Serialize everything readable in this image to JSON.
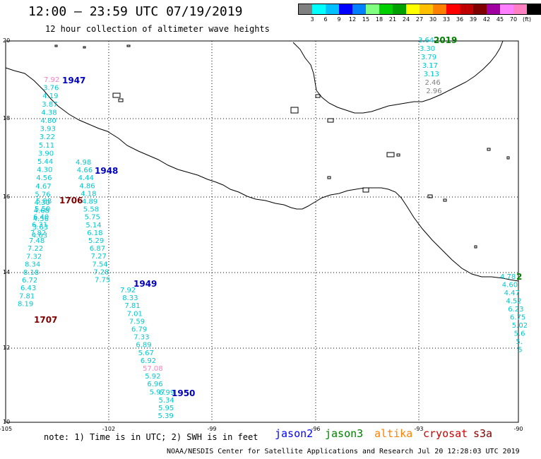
{
  "title": "12:00 – 23:59 UTC 07/19/2019",
  "subtitle": "12 hour collection of altimeter wave heights",
  "color_scale": {
    "colors": [
      "#808080",
      "#00ffff",
      "#00c0ff",
      "#0000ff",
      "#0080ff",
      "#80ff80",
      "#00d000",
      "#00a000",
      "#ffff00",
      "#ffc000",
      "#ff8000",
      "#ff0000",
      "#c00000",
      "#800000",
      "#a000a0",
      "#ff80ff",
      "#ff80c0",
      "#000000"
    ],
    "labels": [
      "3",
      "6",
      "9",
      "12",
      "15",
      "18",
      "21",
      "24",
      "27",
      "30",
      "33",
      "36",
      "39",
      "42",
      "45",
      "70",
      "(ft)"
    ]
  },
  "axes": {
    "lat_labels": [
      "20",
      "18",
      "16",
      "14",
      "12",
      "10"
    ],
    "lon_labels": [
      "-105",
      "-102",
      "-99",
      "-96",
      "-93",
      "-90"
    ]
  },
  "passes": [
    {
      "label": "1947",
      "color": "#0000c0",
      "values": [
        {
          "v": "7.92",
          "c": "#ff80c0"
        },
        {
          "v": "3.76",
          "c": "#00c8d0"
        },
        {
          "v": "4.19",
          "c": "#00c8d0"
        },
        {
          "v": "3.87",
          "c": "#00c8d0"
        },
        {
          "v": "4.38",
          "c": "#00c8d0"
        },
        {
          "v": "4.80",
          "c": "#00c8d0"
        },
        {
          "v": "3.93",
          "c": "#00c8d0"
        },
        {
          "v": "3.22",
          "c": "#00c8d0"
        },
        {
          "v": "5.11",
          "c": "#00c8d0"
        },
        {
          "v": "3.90",
          "c": "#00c8d0"
        },
        {
          "v": "5.44",
          "c": "#00c8d0"
        },
        {
          "v": "4.30",
          "c": "#00c8d0"
        },
        {
          "v": "4.56",
          "c": "#00c8d0"
        },
        {
          "v": "4.67",
          "c": "#00c8d0"
        },
        {
          "v": "5.76",
          "c": "#00c8d0"
        },
        {
          "v": "4.30",
          "c": "#00c8d0"
        },
        {
          "v": "4.68",
          "c": "#00c8d0"
        },
        {
          "v": "4.56",
          "c": "#00c8d0"
        },
        {
          "v": "3.63",
          "c": "#00c8d0"
        },
        {
          "v": "4.63",
          "c": "#00c8d0"
        }
      ]
    },
    {
      "label": "1948",
      "color": "#0000c0",
      "values": [
        {
          "v": "4.98",
          "c": "#00c8d0"
        },
        {
          "v": "4.66",
          "c": "#00c8d0"
        },
        {
          "v": "4.44",
          "c": "#00c8d0"
        },
        {
          "v": "4.86",
          "c": "#00c8d0"
        },
        {
          "v": "4.18",
          "c": "#00c8d0"
        },
        {
          "v": "4.89",
          "c": "#00c8d0"
        },
        {
          "v": "5.58",
          "c": "#00c8d0"
        },
        {
          "v": "5.75",
          "c": "#00c8d0"
        },
        {
          "v": "5.14",
          "c": "#00c8d0"
        },
        {
          "v": "6.18",
          "c": "#00c8d0"
        },
        {
          "v": "5.29",
          "c": "#00c8d0"
        },
        {
          "v": "6.87",
          "c": "#00c8d0"
        },
        {
          "v": "7.27",
          "c": "#00c8d0"
        },
        {
          "v": "7.54",
          "c": "#00c8d0"
        },
        {
          "v": "7.28",
          "c": "#00c8d0"
        },
        {
          "v": "7.75",
          "c": "#00c8d0"
        }
      ]
    },
    {
      "label": "1706",
      "color": "#800000",
      "values": [
        {
          "v": "5.88",
          "c": "#00c8d0"
        },
        {
          "v": "5.50",
          "c": "#00c8d0"
        },
        {
          "v": "6.40",
          "c": "#00c8d0"
        },
        {
          "v": "6.31",
          "c": "#00c8d0"
        },
        {
          "v": "7.82",
          "c": "#00c8d0"
        },
        {
          "v": "7.48",
          "c": "#00c8d0"
        },
        {
          "v": "7.22",
          "c": "#00c8d0"
        },
        {
          "v": "7.32",
          "c": "#00c8d0"
        },
        {
          "v": "8.34",
          "c": "#00c8d0"
        },
        {
          "v": "8.18",
          "c": "#00c8d0"
        },
        {
          "v": "6.72",
          "c": "#00c8d0"
        },
        {
          "v": "6.43",
          "c": "#00c8d0"
        },
        {
          "v": "7.81",
          "c": "#00c8d0"
        },
        {
          "v": "8.19",
          "c": "#00c8d0"
        }
      ]
    },
    {
      "label": "1707",
      "color": "#800000",
      "values": []
    },
    {
      "label": "1949",
      "color": "#0000c0",
      "values": [
        {
          "v": "7.92",
          "c": "#00c8d0"
        },
        {
          "v": "8.33",
          "c": "#00c8d0"
        },
        {
          "v": "7.81",
          "c": "#00c8d0"
        },
        {
          "v": "7.01",
          "c": "#00c8d0"
        },
        {
          "v": "7.59",
          "c": "#00c8d0"
        },
        {
          "v": "6.79",
          "c": "#00c8d0"
        },
        {
          "v": "7.33",
          "c": "#00c8d0"
        },
        {
          "v": "6.89",
          "c": "#00c8d0"
        },
        {
          "v": "5.67",
          "c": "#00c8d0"
        },
        {
          "v": "6.92",
          "c": "#00c8d0"
        },
        {
          "v": "57.08",
          "c": "#ff80c0"
        },
        {
          "v": "5.92",
          "c": "#00c8d0"
        },
        {
          "v": "6.96",
          "c": "#00c8d0"
        },
        {
          "v": "5.97",
          "c": "#00c8d0"
        }
      ]
    },
    {
      "label": "1950",
      "color": "#0000c0",
      "values": [
        {
          "v": "6.99",
          "c": "#00c8d0"
        },
        {
          "v": "5.34",
          "c": "#00c8d0"
        },
        {
          "v": "5.95",
          "c": "#00c8d0"
        },
        {
          "v": "5.39",
          "c": "#00c8d0"
        }
      ]
    },
    {
      "label": "2019",
      "color": "#008000",
      "values": [
        {
          "v": "3.64",
          "c": "#00c8d0"
        },
        {
          "v": "3.30",
          "c": "#00c8d0"
        },
        {
          "v": "3.79",
          "c": "#00c8d0"
        },
        {
          "v": "3.17",
          "c": "#00c8d0"
        },
        {
          "v": "3.13",
          "c": "#00c8d0"
        },
        {
          "v": "2.46",
          "c": "#808080"
        },
        {
          "v": "2.96",
          "c": "#808080"
        }
      ]
    },
    {
      "label": "2",
      "color": "#008000",
      "values": [
        {
          "v": "4.78",
          "c": "#00c8d0"
        },
        {
          "v": "4.60",
          "c": "#00c8d0"
        },
        {
          "v": "4.47",
          "c": "#00c8d0"
        },
        {
          "v": "4.52",
          "c": "#00c8d0"
        },
        {
          "v": "6.23",
          "c": "#00c8d0"
        },
        {
          "v": "6.75",
          "c": "#00c8d0"
        },
        {
          "v": "5.02",
          "c": "#00c8d0"
        },
        {
          "v": "5.6",
          "c": "#00c8d0"
        },
        {
          "v": "5.",
          "c": "#00c8d0"
        },
        {
          "v": "5",
          "c": "#00c8d0"
        }
      ]
    }
  ],
  "note": "note: 1) Time is in UTC; 2) SWH is in feet",
  "legend": [
    {
      "name": "jason2",
      "color": "#0000ff"
    },
    {
      "name": "jason3",
      "color": "#008000"
    },
    {
      "name": "altika",
      "color": "#ff8000"
    },
    {
      "name": "cryosat",
      "color": "#d00000"
    },
    {
      "name": "s3a",
      "color": "#800000"
    }
  ],
  "footer": "NOAA/NESDIS Center for Satellite Applications and Research   Jul 20 12:28:03 UTC 2019"
}
